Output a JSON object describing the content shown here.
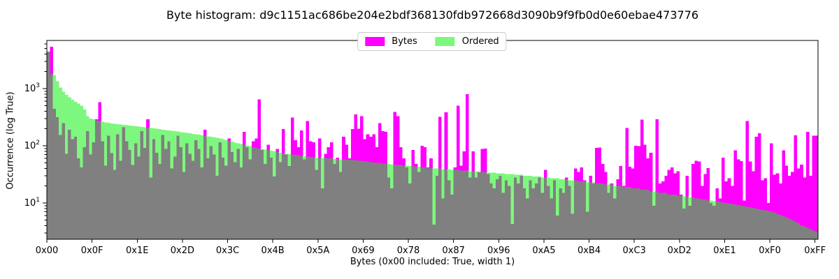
{
  "title": "Byte histogram: d9c1151ac686be204e2bdf368130fdb972668d3090b9f9fb0d0e60ebae473776",
  "legend": {
    "items": [
      {
        "label": "Bytes",
        "color": "#ff00ff"
      },
      {
        "label": "Ordered",
        "color": "#7ef77e"
      }
    ]
  },
  "axes": {
    "y_label": "Occurrence (log True)",
    "x_label": "Bytes (0x00 included: True, width 1)"
  },
  "chart_data": {
    "type": "bar",
    "log_y": true,
    "x_range": [
      0,
      255
    ],
    "ylim": [
      2.32,
      6900
    ],
    "grid": false,
    "legend_position": "upper center",
    "colors": {
      "bytes": "#ff00ff",
      "ordered": "#7ef77e",
      "overlap": "#808080"
    },
    "yticks": [
      {
        "mantissa": "10",
        "exp": "1"
      },
      {
        "mantissa": "10",
        "exp": "2"
      },
      {
        "mantissa": "10",
        "exp": "3"
      }
    ],
    "xticks": [
      {
        "value": 0,
        "label": "0x00"
      },
      {
        "value": 15,
        "label": "0x0F"
      },
      {
        "value": 30,
        "label": "0x1E"
      },
      {
        "value": 45,
        "label": "0x2D"
      },
      {
        "value": 60,
        "label": "0x3C"
      },
      {
        "value": 75,
        "label": "0x4B"
      },
      {
        "value": 90,
        "label": "0x5A"
      },
      {
        "value": 105,
        "label": "0x69"
      },
      {
        "value": 120,
        "label": "0x78"
      },
      {
        "value": 135,
        "label": "0x87"
      },
      {
        "value": 150,
        "label": "0x96"
      },
      {
        "value": 165,
        "label": "0xA5"
      },
      {
        "value": 180,
        "label": "0xB4"
      },
      {
        "value": 195,
        "label": "0xC3"
      },
      {
        "value": 210,
        "label": "0xD2"
      },
      {
        "value": 225,
        "label": "0xE1"
      },
      {
        "value": 240,
        "label": "0xF0"
      },
      {
        "value": 255,
        "label": "0xFF"
      }
    ],
    "series": [
      {
        "name": "Bytes",
        "values": [
          4400,
          5400,
          440,
          315,
          155,
          250,
          72,
          190,
          130,
          145,
          60,
          42,
          95,
          180,
          70,
          115,
          290,
          580,
          120,
          45,
          150,
          75,
          38,
          160,
          55,
          210,
          120,
          85,
          46,
          110,
          65,
          180,
          92,
          290,
          28,
          130,
          75,
          48,
          155,
          88,
          120,
          40,
          65,
          150,
          95,
          35,
          110,
          72,
          55,
          125,
          88,
          42,
          190,
          60,
          98,
          70,
          30,
          115,
          62,
          45,
          135,
          78,
          52,
          88,
          42,
          175,
          95,
          58,
          120,
          135,
          650,
          85,
          48,
          105,
          62,
          29,
          88,
          52,
          195,
          70,
          44,
          310,
          125,
          95,
          185,
          58,
          270,
          120,
          115,
          38,
          135,
          18,
          72,
          95,
          115,
          48,
          62,
          35,
          145,
          105,
          60,
          195,
          355,
          200,
          330,
          130,
          160,
          145,
          160,
          95,
          250,
          180,
          175,
          28,
          18,
          390,
          330,
          95,
          60,
          42,
          22,
          85,
          48,
          35,
          100,
          95,
          42,
          60,
          4.2,
          30,
          320,
          12,
          385,
          25,
          14,
          42,
          500,
          45,
          80,
          800,
          28,
          80,
          28,
          35,
          88,
          90,
          32,
          22,
          18,
          26,
          30,
          15,
          25,
          20,
          4.3,
          28,
          22,
          30,
          18,
          12,
          25,
          18,
          22,
          28,
          15,
          38,
          20,
          12,
          25,
          6,
          18,
          15,
          28,
          20,
          6.5,
          40,
          35,
          42,
          25,
          7,
          30,
          22,
          92,
          93,
          48,
          35,
          15,
          22,
          12,
          26,
          44,
          20,
          205,
          43,
          40,
          100,
          98,
          285,
          105,
          60,
          75,
          9,
          290,
          22,
          24,
          30,
          38,
          42,
          33,
          36,
          14,
          8,
          30,
          9,
          48,
          55,
          53,
          20,
          32,
          41,
          10,
          9,
          18,
          12,
          62,
          24,
          27,
          20,
          83,
          58,
          54,
          11,
          270,
          53,
          36,
          145,
          165,
          25,
          27,
          10,
          110,
          31,
          33,
          22,
          83,
          45,
          30,
          35,
          153,
          40,
          47,
          28,
          175,
          30,
          150,
          150
        ]
      },
      {
        "name": "Ordered",
        "values": [
          4400,
          1800,
          1740,
          1350,
          1050,
          880,
          780,
          700,
          640,
          590,
          545,
          500,
          430,
          330,
          300,
          290,
          280,
          272,
          265,
          258,
          252,
          247,
          243,
          239,
          235,
          231,
          228,
          225,
          222,
          219,
          216,
          213,
          210,
          207,
          204,
          201,
          198,
          195,
          192,
          189,
          186,
          183,
          180,
          177,
          174,
          171,
          168,
          165,
          162,
          159,
          156,
          153,
          150,
          147,
          144,
          141,
          138,
          135,
          130,
          126,
          122,
          118,
          114,
          110,
          107,
          104,
          101,
          98,
          95,
          92,
          90,
          88,
          86,
          84,
          82,
          80,
          78,
          76,
          74,
          72,
          71,
          70,
          69,
          68,
          67,
          66,
          65,
          64,
          63,
          62,
          62,
          61,
          61,
          60,
          60,
          59,
          59,
          58,
          58,
          57,
          57,
          56,
          56,
          55,
          55,
          54,
          53,
          52,
          51,
          50,
          50,
          49,
          48,
          48,
          47,
          47,
          46,
          46,
          45,
          45,
          44,
          44,
          43,
          43,
          42,
          42,
          41,
          41,
          40,
          40,
          40,
          39,
          39,
          39,
          38,
          38,
          38,
          37,
          37,
          37,
          36,
          36,
          36,
          35,
          35,
          35,
          34,
          34,
          34,
          33,
          33,
          33,
          32,
          32,
          32,
          31,
          31,
          31,
          30,
          30,
          30,
          29,
          29,
          29,
          28,
          28,
          28,
          27,
          27,
          27,
          26,
          26,
          26,
          25,
          25,
          25,
          24,
          24,
          24,
          23,
          23,
          23,
          22,
          22,
          22,
          21,
          21,
          21,
          20,
          20,
          20,
          19,
          19,
          19,
          18,
          18,
          18,
          17,
          17,
          17,
          16,
          16,
          16,
          15,
          15,
          15,
          14,
          14,
          14,
          13.5,
          13.5,
          13,
          13,
          12.5,
          12.5,
          12,
          12,
          11.5,
          11.5,
          11,
          11,
          10.8,
          10.6,
          10.4,
          10.2,
          10,
          9.8,
          9.6,
          9.4,
          9.2,
          9,
          8.8,
          8.6,
          8.4,
          8.2,
          8,
          7.8,
          7.6,
          7.4,
          7.2,
          7,
          6.8,
          6.5,
          6.2,
          5.9,
          5.6,
          5.3,
          5,
          4.7,
          4.4,
          4.1,
          3.9,
          3.7,
          3.5,
          3.3,
          3.1
        ]
      }
    ]
  }
}
